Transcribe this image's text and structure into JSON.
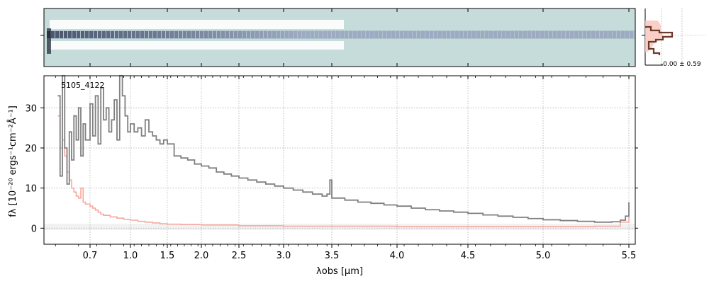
{
  "chart_data": [
    {
      "type": "heatmap",
      "description_of_content": "",
      "x_range_um": [
        0.5,
        5.55
      ]
    },
    {
      "type": "line",
      "annotation": "-0.00 ± 0.59"
    },
    {
      "type": "line",
      "label": "5105_4122",
      "xlabel": "λobs [μm]",
      "ylabel": "fλ [10⁻²⁰ ergs⁻¹cm⁻²Å⁻¹]",
      "xscale": "nonlinear",
      "xlim": [
        0.55,
        5.52
      ],
      "ylim": [
        -4,
        38
      ],
      "grid": true,
      "xticks": [
        0.7,
        1.0,
        1.5,
        2.0,
        2.5,
        3.0,
        3.5,
        4.0,
        4.5,
        5.0,
        5.5
      ],
      "xtick_labels": [
        "0.7",
        "1.0",
        "1.5",
        "2.0",
        "2.5",
        "3.0",
        "3.5",
        "4.0",
        "4.5",
        "5.0",
        "5.5"
      ],
      "yticks": [
        0,
        10,
        20,
        30
      ],
      "ytick_labels": [
        "0",
        "10",
        "20",
        "30"
      ],
      "series": [
        {
          "color": "#808080",
          "points": [
            [
              0.56,
              33
            ],
            [
              0.57,
              13
            ],
            [
              0.58,
              38
            ],
            [
              0.59,
              20
            ],
            [
              0.6,
              11
            ],
            [
              0.61,
              24
            ],
            [
              0.62,
              17
            ],
            [
              0.63,
              28
            ],
            [
              0.64,
              22
            ],
            [
              0.65,
              30
            ],
            [
              0.66,
              18
            ],
            [
              0.67,
              26
            ],
            [
              0.68,
              22
            ],
            [
              0.7,
              31
            ],
            [
              0.72,
              23
            ],
            [
              0.74,
              33
            ],
            [
              0.76,
              21
            ],
            [
              0.78,
              35
            ],
            [
              0.8,
              27
            ],
            [
              0.82,
              30
            ],
            [
              0.84,
              24
            ],
            [
              0.86,
              27
            ],
            [
              0.88,
              32
            ],
            [
              0.9,
              22
            ],
            [
              0.92,
              38
            ],
            [
              0.94,
              33
            ],
            [
              0.96,
              28
            ],
            [
              0.98,
              24
            ],
            [
              1.0,
              26
            ],
            [
              1.05,
              24
            ],
            [
              1.1,
              25
            ],
            [
              1.15,
              23
            ],
            [
              1.2,
              27
            ],
            [
              1.25,
              24
            ],
            [
              1.3,
              23
            ],
            [
              1.35,
              22
            ],
            [
              1.4,
              21
            ],
            [
              1.45,
              22
            ],
            [
              1.5,
              21
            ],
            [
              1.6,
              18
            ],
            [
              1.7,
              17.5
            ],
            [
              1.8,
              17
            ],
            [
              1.9,
              16
            ],
            [
              2.0,
              15.5
            ],
            [
              2.1,
              15
            ],
            [
              2.2,
              14
            ],
            [
              2.3,
              13.5
            ],
            [
              2.4,
              13
            ],
            [
              2.5,
              12.5
            ],
            [
              2.6,
              12
            ],
            [
              2.7,
              11.5
            ],
            [
              2.8,
              11
            ],
            [
              2.9,
              10.5
            ],
            [
              3.0,
              10
            ],
            [
              3.1,
              9.5
            ],
            [
              3.2,
              9
            ],
            [
              3.3,
              8.5
            ],
            [
              3.4,
              8
            ],
            [
              3.45,
              8.5
            ],
            [
              3.48,
              12
            ],
            [
              3.5,
              7.5
            ],
            [
              3.6,
              7
            ],
            [
              3.7,
              6.5
            ],
            [
              3.8,
              6.2
            ],
            [
              3.9,
              5.8
            ],
            [
              4.0,
              5.5
            ],
            [
              4.1,
              5
            ],
            [
              4.2,
              4.6
            ],
            [
              4.3,
              4.3
            ],
            [
              4.4,
              4
            ],
            [
              4.5,
              3.7
            ],
            [
              4.6,
              3.3
            ],
            [
              4.7,
              3
            ],
            [
              4.8,
              2.7
            ],
            [
              4.9,
              2.4
            ],
            [
              5.0,
              2.1
            ],
            [
              5.1,
              1.9
            ],
            [
              5.2,
              1.7
            ],
            [
              5.3,
              1.5
            ],
            [
              5.4,
              1.6
            ],
            [
              5.45,
              2
            ],
            [
              5.48,
              3
            ],
            [
              5.5,
              6.5
            ]
          ]
        },
        {
          "color": "#f7a8a0",
          "points": [
            [
              0.56,
              28
            ],
            [
              0.57,
              20
            ],
            [
              0.58,
              22
            ],
            [
              0.59,
              18
            ],
            [
              0.6,
              14
            ],
            [
              0.61,
              12
            ],
            [
              0.62,
              10
            ],
            [
              0.63,
              9
            ],
            [
              0.64,
              8
            ],
            [
              0.65,
              7.5
            ],
            [
              0.66,
              10
            ],
            [
              0.67,
              6.5
            ],
            [
              0.68,
              6
            ],
            [
              0.7,
              5.5
            ],
            [
              0.72,
              5
            ],
            [
              0.74,
              4.5
            ],
            [
              0.76,
              4
            ],
            [
              0.78,
              3.5
            ],
            [
              0.8,
              3.2
            ],
            [
              0.85,
              2.8
            ],
            [
              0.9,
              2.5
            ],
            [
              0.95,
              2.2
            ],
            [
              1.0,
              2
            ],
            [
              1.1,
              1.7
            ],
            [
              1.2,
              1.5
            ],
            [
              1.3,
              1.3
            ],
            [
              1.4,
              1.1
            ],
            [
              1.5,
              1
            ],
            [
              1.7,
              0.9
            ],
            [
              2.0,
              0.8
            ],
            [
              2.5,
              0.6
            ],
            [
              3.0,
              0.5
            ],
            [
              3.5,
              0.5
            ],
            [
              4.0,
              0.4
            ],
            [
              4.5,
              0.4
            ],
            [
              5.0,
              0.4
            ],
            [
              5.3,
              0.5
            ],
            [
              5.45,
              1.5
            ],
            [
              5.5,
              3
            ]
          ]
        }
      ]
    }
  ]
}
